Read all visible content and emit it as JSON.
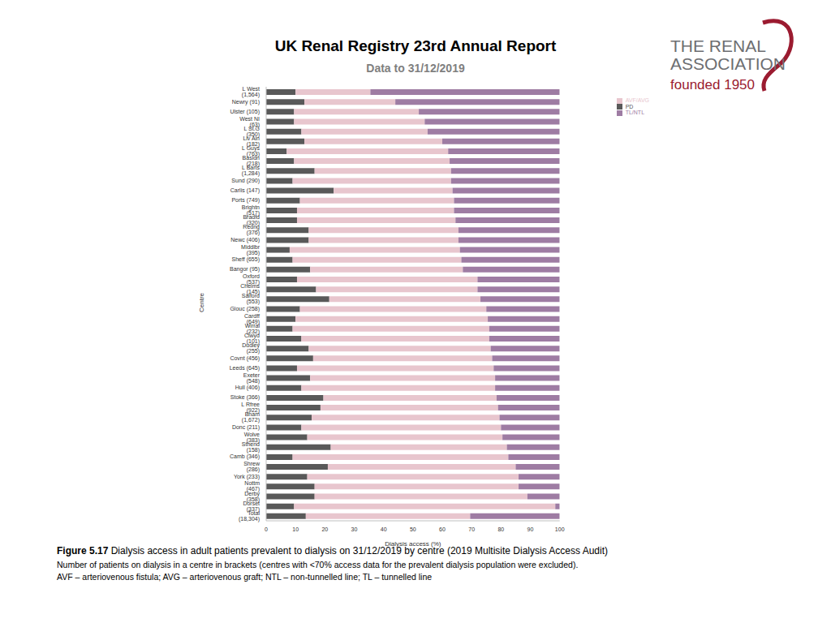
{
  "header": {
    "title": "UK Renal Registry 23rd Annual Report",
    "subtitle": "Data to 31/12/2019"
  },
  "logo": {
    "lines": [
      "THE RENAL",
      "ASSOCIATION"
    ],
    "tagline": "founded 1950"
  },
  "chart_data": {
    "type": "bar",
    "orientation": "horizontal",
    "stacked": true,
    "grid": false,
    "legend": "upper right",
    "x_label": "Dialysis access (%)",
    "y_label": "Centre",
    "xlim": [
      0,
      100
    ],
    "xticks": [
      0,
      10,
      20,
      30,
      40,
      50,
      60,
      70,
      80,
      90,
      100
    ],
    "categories": [
      "L West (1,564)",
      "Newry (91)",
      "Ulster (105)",
      "West NI (63)",
      "L St.G (350)",
      "Liv Ain (182)",
      "L Guys (763)",
      "Basldn (218)",
      "L Barts (1,284)",
      "Sund (290)",
      "Carlis (147)",
      "Ports (749)",
      "Brightn (517)",
      "Bradfd (320)",
      "Redng (376)",
      "Newc (406)",
      "Middlbr (395)",
      "Sheff (655)",
      "Bangor (95)",
      "Oxford (537)",
      "Chelms (145)",
      "Salford (553)",
      "Glouc (258)",
      "Cardff (649)",
      "Wirral (232)",
      "Clwyd (101)",
      "Dudley (255)",
      "Covnt (456)",
      "Leeds (645)",
      "Exeter (548)",
      "Hull (406)",
      "Stoke (366)",
      "L Rfree (922)",
      "Bham (1,672)",
      "Donc (211)",
      "Wolve (383)",
      "Sthend (158)",
      "Camb (346)",
      "Shrew (286)",
      "York (233)",
      "Nottm (467)",
      "Derby (358)",
      "Dorset (337)",
      "Total (18,304)"
    ],
    "series": [
      {
        "name": "PD",
        "color": "#595959",
        "values": [
          10,
          13,
          9.5,
          9.5,
          12,
          13,
          7,
          9.5,
          16.5,
          9,
          23,
          11.5,
          10.5,
          10.5,
          14.5,
          14.5,
          8,
          9,
          15,
          10.5,
          17,
          21.5,
          11.5,
          10,
          9,
          12,
          14.5,
          16,
          10.5,
          15,
          12,
          19.5,
          18.5,
          15.5,
          12,
          14,
          22,
          9,
          21,
          14,
          16.5,
          16.5,
          9.5,
          13.5
        ]
      },
      {
        "name": "AVF/AVG",
        "color": "#e8c6ce",
        "values": [
          25.5,
          31,
          42.5,
          44.5,
          43,
          47,
          55,
          53,
          46.5,
          54,
          40.5,
          52.5,
          53.5,
          54,
          51,
          51,
          58,
          57.5,
          52,
          61.5,
          55,
          51.5,
          63.5,
          65.5,
          67,
          64,
          62,
          61,
          67,
          63,
          66,
          59,
          60.5,
          64,
          68,
          66.5,
          60,
          73.5,
          64,
          72,
          69.5,
          72.5,
          89,
          56
        ]
      },
      {
        "name": "TL/NTL",
        "color": "#9e7ca3",
        "values": [
          64.5,
          56,
          48,
          46,
          45,
          40,
          38,
          37.5,
          37,
          37,
          36.5,
          36,
          36,
          35.5,
          34.5,
          34.5,
          34,
          33.5,
          33,
          28,
          28,
          27,
          25,
          24.5,
          24,
          24,
          23.5,
          23,
          22.5,
          22,
          22,
          21.5,
          21,
          20.5,
          20,
          19.5,
          18,
          17.5,
          15,
          14,
          14,
          11,
          1.5,
          30.5
        ]
      }
    ]
  },
  "caption": {
    "label": "Figure 5.17",
    "text": "Dialysis access in adult patients prevalent to dialysis on 31/12/2019 by centre (2019 Multisite Dialysis Access Audit)",
    "notes": [
      "Number of patients on dialysis in a centre in brackets (centres with <70% access data for the prevalent dialysis population were excluded).",
      "AVF – arteriovenous fistula; AVG – arteriovenous graft; NTL – non-tunnelled line; TL – tunnelled line"
    ]
  }
}
